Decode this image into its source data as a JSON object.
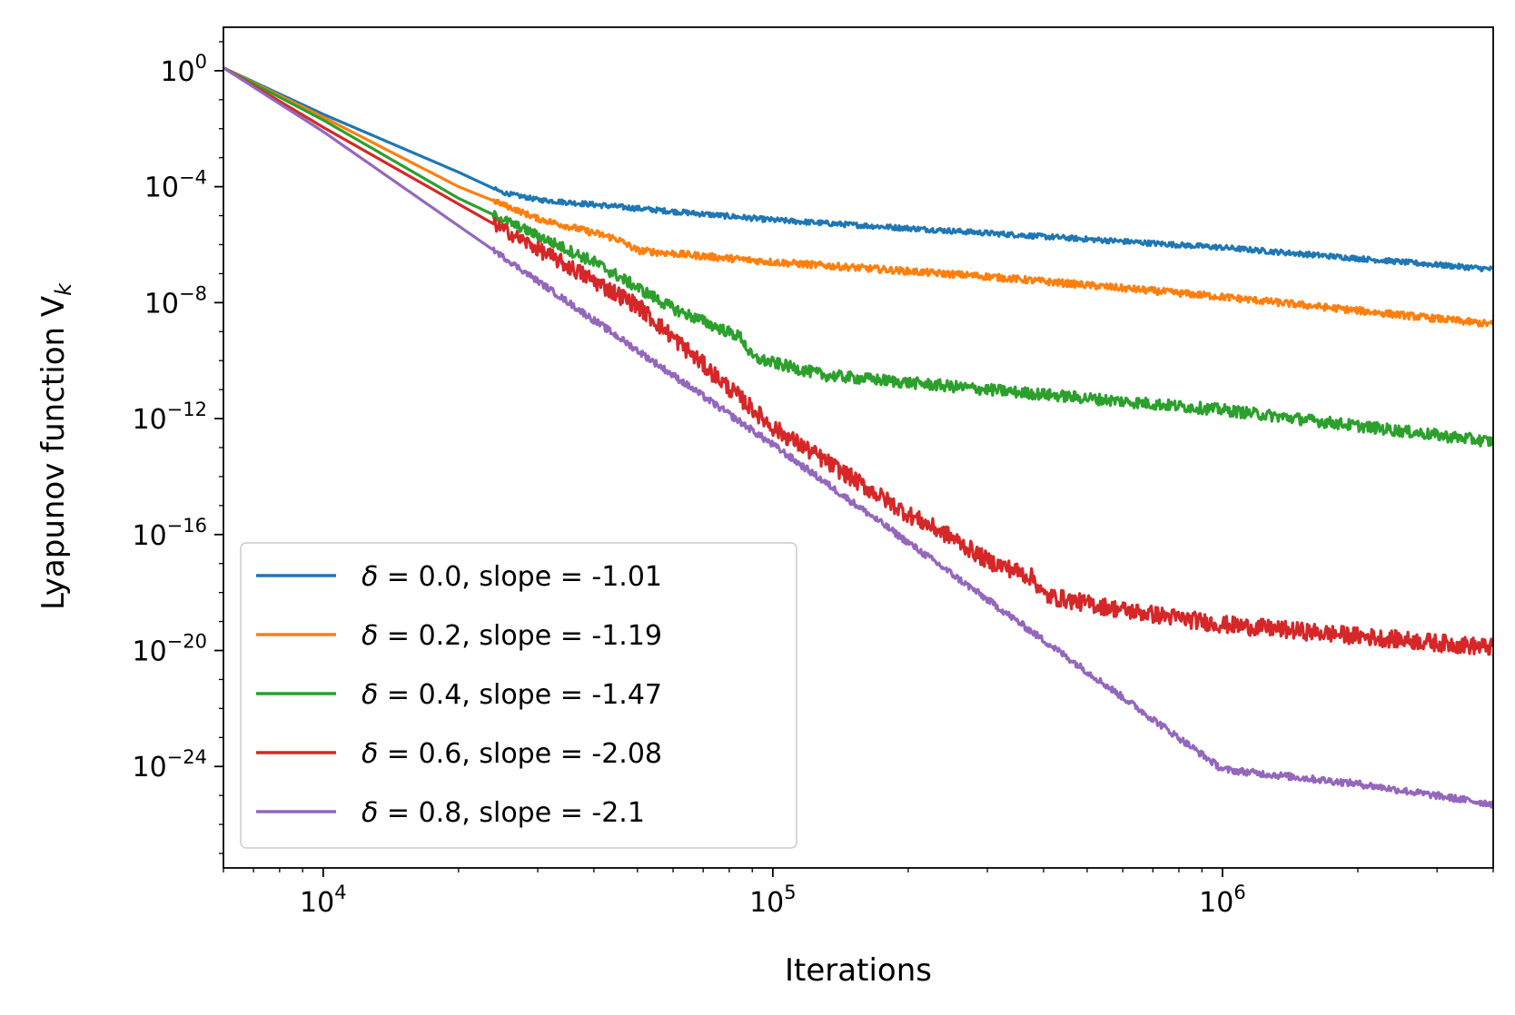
{
  "chart_data": {
    "type": "line",
    "title": "",
    "xlabel": "Iterations",
    "ylabel": "Lyapunov function V",
    "ylabel_subscript": "k",
    "xscale": "log",
    "yscale": "log",
    "xlim": [
      6000,
      4000000
    ],
    "ylim_exponents": [
      -27.5,
      1.5
    ],
    "x_ticks": [
      {
        "value": 10000,
        "base": "10",
        "exp": "4"
      },
      {
        "value": 100000,
        "base": "10",
        "exp": "5"
      },
      {
        "value": 1000000,
        "base": "10",
        "exp": "6"
      }
    ],
    "y_ticks": [
      {
        "exponent": 0,
        "base": "10",
        "exp": "0"
      },
      {
        "exponent": -4,
        "base": "10",
        "exp": "−4"
      },
      {
        "exponent": -8,
        "base": "10",
        "exp": "−8"
      },
      {
        "exponent": -12,
        "base": "10",
        "exp": "−12"
      },
      {
        "exponent": -16,
        "base": "10",
        "exp": "−16"
      },
      {
        "exponent": -20,
        "base": "10",
        "exp": "−20"
      },
      {
        "exponent": -24,
        "base": "10",
        "exp": "−24"
      }
    ],
    "legend_position": "lower-left",
    "series": [
      {
        "name": "δ = 0.0, slope = -1.01",
        "symbol": "δ",
        "label": " = 0.0, slope = -1.01",
        "color": "#1f77b4",
        "noise_exp": 0.09,
        "points": [
          [
            6000,
            0.1
          ],
          [
            10000,
            -1.5
          ],
          [
            20000,
            -3.5
          ],
          [
            25000,
            -4.2
          ],
          [
            30000,
            -4.45
          ],
          [
            50000,
            -4.75
          ],
          [
            100000,
            -5.15
          ],
          [
            300000,
            -5.6
          ],
          [
            1000000,
            -6.1
          ],
          [
            4000000,
            -6.85
          ]
        ]
      },
      {
        "name": "δ = 0.2, slope = -1.19",
        "symbol": "δ",
        "label": " = 0.2, slope = -1.19",
        "color": "#ff7f0e",
        "noise_exp": 0.12,
        "points": [
          [
            6000,
            0.1
          ],
          [
            10000,
            -1.6
          ],
          [
            20000,
            -4.0
          ],
          [
            30000,
            -5.1
          ],
          [
            45000,
            -5.8
          ],
          [
            50000,
            -6.2
          ],
          [
            100000,
            -6.6
          ],
          [
            300000,
            -7.1
          ],
          [
            1000000,
            -7.8
          ],
          [
            4000000,
            -8.75
          ]
        ]
      },
      {
        "name": "δ = 0.4, slope = -1.47",
        "symbol": "δ",
        "label": " = 0.4, slope = -1.47",
        "color": "#2ca02c",
        "noise_exp": 0.2,
        "points": [
          [
            6000,
            0.1
          ],
          [
            10000,
            -1.7
          ],
          [
            20000,
            -4.4
          ],
          [
            40000,
            -6.6
          ],
          [
            60000,
            -8.2
          ],
          [
            85000,
            -9.2
          ],
          [
            90000,
            -9.9
          ],
          [
            130000,
            -10.5
          ],
          [
            300000,
            -11.0
          ],
          [
            1000000,
            -11.7
          ],
          [
            4000000,
            -12.8
          ]
        ]
      },
      {
        "name": "δ = 0.6, slope = -2.08",
        "symbol": "δ",
        "label": " = 0.6, slope = -2.08",
        "color": "#d62728",
        "noise_exp": 0.3,
        "points": [
          [
            6000,
            0.1
          ],
          [
            10000,
            -1.95
          ],
          [
            50000,
            -8.1
          ],
          [
            100000,
            -12.3
          ],
          [
            200000,
            -15.3
          ],
          [
            250000,
            -16.1
          ],
          [
            300000,
            -16.9
          ],
          [
            340000,
            -17.2
          ],
          [
            380000,
            -17.5
          ],
          [
            400000,
            -18.1
          ],
          [
            600000,
            -18.6
          ],
          [
            1000000,
            -19.1
          ],
          [
            4000000,
            -19.9
          ]
        ]
      },
      {
        "name": "δ = 0.8, slope = -2.1",
        "symbol": "δ",
        "label": " = 0.8, slope = -2.1",
        "color": "#9467bd",
        "noise_exp": 0.12,
        "points": [
          [
            6000,
            0.1
          ],
          [
            10000,
            -2.1
          ],
          [
            100000,
            -12.9
          ],
          [
            1000000,
            -24.1
          ],
          [
            2000000,
            -24.6
          ],
          [
            4000000,
            -25.3
          ]
        ]
      }
    ]
  }
}
